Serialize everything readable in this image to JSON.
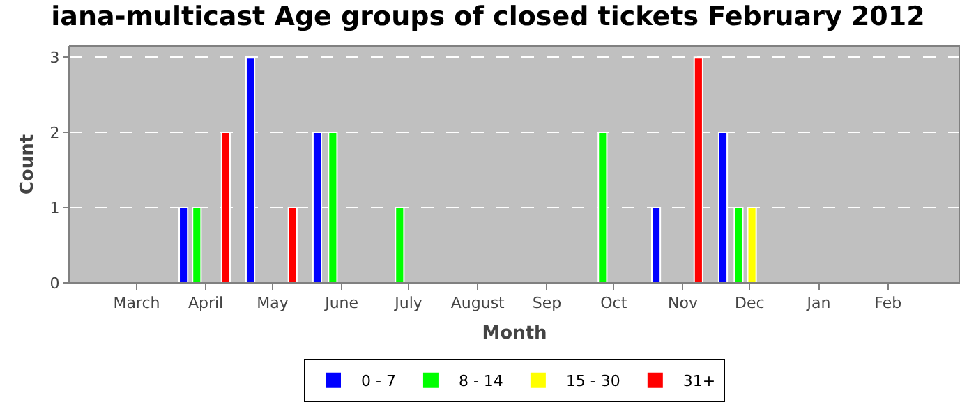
{
  "chart_data": {
    "type": "bar",
    "title": "iana-multicast Age groups of closed tickets February 2012",
    "xlabel": "Month",
    "ylabel": "Count",
    "series": [
      {
        "name": "0 - 7",
        "color": "#0000ff",
        "x": [
          "2011-03-22",
          "2011-04-21",
          "2011-05-21",
          "2011-10-20",
          "2011-11-19"
        ],
        "values": [
          1,
          3,
          2,
          1,
          2
        ]
      },
      {
        "name": "8 - 14",
        "color": "#00ff00",
        "x": [
          "2011-03-28",
          "2011-05-28",
          "2011-06-27",
          "2011-09-26",
          "2011-11-26"
        ],
        "values": [
          1,
          2,
          1,
          2,
          1
        ]
      },
      {
        "name": "15 - 30",
        "color": "#ffff00",
        "x": [
          "2011-12-02"
        ],
        "values": [
          1
        ]
      },
      {
        "name": "31+",
        "color": "#ff0000",
        "x": [
          "2011-04-10",
          "2011-05-10",
          "2011-11-08"
        ],
        "values": [
          2,
          1,
          3
        ]
      }
    ],
    "xlim": [
      "2011-01-30",
      "2012-03-04"
    ],
    "xticks": [
      {
        "value": "2011-03-01",
        "label": "March"
      },
      {
        "value": "2011-04-01",
        "label": "April"
      },
      {
        "value": "2011-05-01",
        "label": "May"
      },
      {
        "value": "2011-06-01",
        "label": "June"
      },
      {
        "value": "2011-07-01",
        "label": "July"
      },
      {
        "value": "2011-08-01",
        "label": "August"
      },
      {
        "value": "2011-09-01",
        "label": "Sep"
      },
      {
        "value": "2011-10-01",
        "label": "Oct"
      },
      {
        "value": "2011-11-01",
        "label": "Nov"
      },
      {
        "value": "2011-12-01",
        "label": "Dec"
      },
      {
        "value": "2012-01-01",
        "label": "Jan"
      },
      {
        "value": "2012-02-01",
        "label": "Feb"
      }
    ],
    "ylim": [
      0,
      3.15
    ],
    "yticks": [
      0,
      1,
      2,
      3
    ],
    "grid": "y",
    "legend": "bottom"
  }
}
